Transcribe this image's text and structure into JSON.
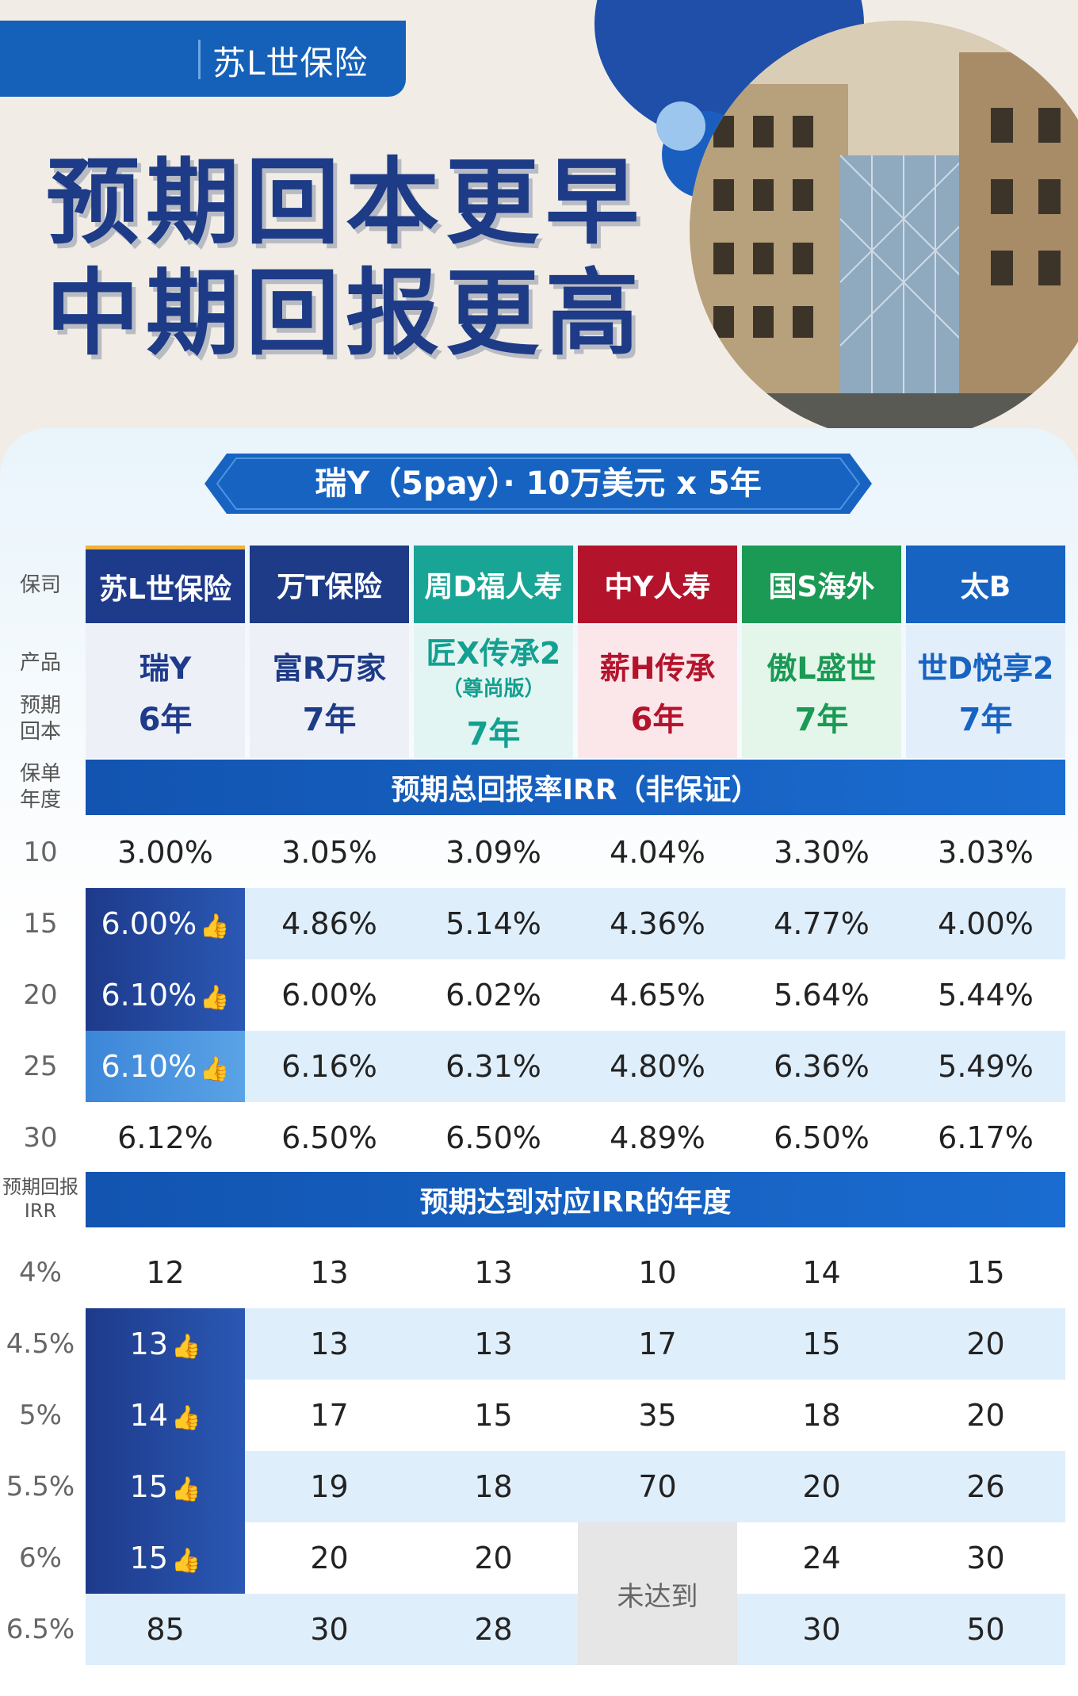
{
  "brand": "苏L世保险",
  "headline": [
    "预期回本更早",
    "中期回报更高"
  ],
  "ribbon": "瑞Y（5pay）· 10万美元 x 5年",
  "labels": {
    "company": "保司",
    "product": "产品",
    "breakeven": "预期\n回本",
    "policy_year": "保单\n年度",
    "expected_irr": "预期回报\nIRR"
  },
  "colors": {
    "sulife": "#1e3a8a",
    "wanT": "#1d3b86",
    "zhouD": "#19a595",
    "zhongY": "#b3142c",
    "guoS": "#1a9a54",
    "taiB": "#1763c2"
  },
  "companies": [
    {
      "name": "苏L世保险",
      "product": "瑞Y",
      "sub": "",
      "years": "6年",
      "hdr_color": "#1e3a8a",
      "prod_bg": "#eef0f8",
      "prod_color": "#1e3a8a"
    },
    {
      "name": "万T保险",
      "product": "富R万家",
      "sub": "",
      "years": "7年",
      "hdr_color": "#1d3b86",
      "prod_bg": "#eef0f8",
      "prod_color": "#1d3b86"
    },
    {
      "name": "周D福人寿",
      "product": "匠X传承2",
      "sub": "（尊尚版）",
      "years": "7年",
      "hdr_color": "#19a595",
      "prod_bg": "#e3f5f2",
      "prod_color": "#13a090"
    },
    {
      "name": "中Y人寿",
      "product": "薪H传承",
      "sub": "",
      "years": "6年",
      "hdr_color": "#b3142c",
      "prod_bg": "#fbe7ea",
      "prod_color": "#b3142c"
    },
    {
      "name": "国S海外",
      "product": "傲L盛世",
      "sub": "",
      "years": "7年",
      "hdr_color": "#1a9a54",
      "prod_bg": "#e4f5ea",
      "prod_color": "#1a9a54"
    },
    {
      "name": "太B",
      "product": "世D悦享2",
      "sub": "",
      "years": "7年",
      "hdr_color": "#1763c2",
      "prod_bg": "#e3eefb",
      "prod_color": "#1763c2"
    }
  ],
  "irr_title": "预期总回报率IRR（非保证）",
  "irr_rows": [
    {
      "year": "10",
      "values": [
        "3.00%",
        "3.05%",
        "3.09%",
        "4.04%",
        "3.30%",
        "3.03%"
      ]
    },
    {
      "year": "15",
      "values": [
        "6.00%",
        "4.86%",
        "5.14%",
        "4.36%",
        "4.77%",
        "4.00%"
      ]
    },
    {
      "year": "20",
      "values": [
        "6.10%",
        "6.00%",
        "6.02%",
        "4.65%",
        "5.64%",
        "5.44%"
      ]
    },
    {
      "year": "25",
      "values": [
        "6.10%",
        "6.16%",
        "6.31%",
        "4.80%",
        "6.36%",
        "5.49%"
      ]
    },
    {
      "year": "30",
      "values": [
        "6.12%",
        "6.50%",
        "6.50%",
        "4.89%",
        "6.50%",
        "6.17%"
      ]
    }
  ],
  "year_title": "预期达到对应IRR的年度",
  "year_rows": [
    {
      "irr": "4%",
      "values": [
        "12",
        "13",
        "13",
        "10",
        "14",
        "15"
      ]
    },
    {
      "irr": "4.5%",
      "values": [
        "13",
        "13",
        "13",
        "17",
        "15",
        "20"
      ]
    },
    {
      "irr": "5%",
      "values": [
        "14",
        "17",
        "15",
        "35",
        "18",
        "20"
      ]
    },
    {
      "irr": "5.5%",
      "values": [
        "15",
        "19",
        "18",
        "70",
        "20",
        "26"
      ]
    },
    {
      "irr": "6%",
      "values": [
        "15",
        "20",
        "20",
        "",
        "24",
        "30"
      ]
    },
    {
      "irr": "6.5%",
      "values": [
        "85",
        "30",
        "28",
        "",
        "30",
        "50"
      ]
    }
  ],
  "not_reached": "未达到",
  "thumb_icon": "thumbs-up-icon"
}
